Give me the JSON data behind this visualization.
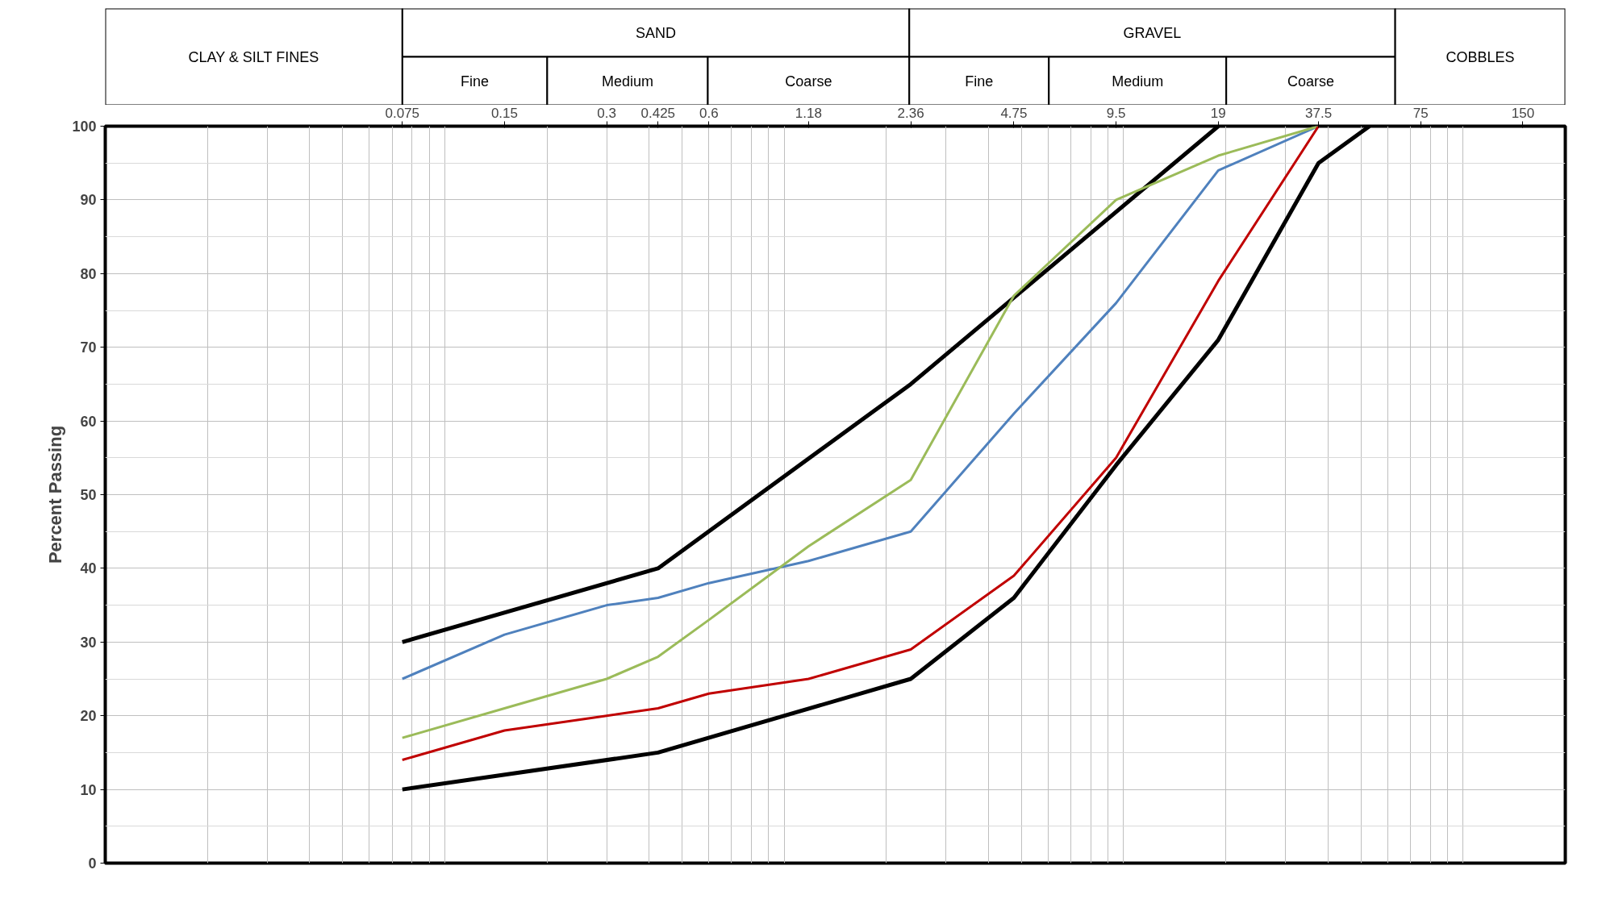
{
  "chart_data": [
    {
      "type": "other",
      "annotations": [
        "CLAY & SILT FINES",
        "SAND",
        "Fine",
        "Medium",
        "Coarse",
        "GRAVEL",
        "Fine",
        "Medium",
        "Coarse",
        "COBBLES"
      ]
    },
    {
      "type": "line",
      "ylabel": "Percent Passing",
      "log": "x",
      "grid": true,
      "xlim": [
        0.01,
        200
      ],
      "ylim": [
        0,
        100
      ],
      "xticks": [
        0.075,
        0.15,
        0.3,
        0.425,
        0.6,
        1.18,
        2.36,
        4.75,
        9.5,
        19,
        37.5,
        75,
        150
      ],
      "yticks": [
        0,
        10,
        20,
        30,
        40,
        50,
        60,
        70,
        80,
        90,
        100
      ],
      "series": [
        {
          "color": "#000000",
          "x": [
            0.075,
            0.425,
            2.36,
            19
          ],
          "values": [
            30,
            40,
            65,
            100
          ]
        },
        {
          "color": "#000000",
          "x": [
            0.075,
            0.425,
            2.36,
            4.75,
            9.5,
            19,
            37.5,
            53
          ],
          "values": [
            10,
            15,
            25,
            36,
            54,
            71,
            95,
            100
          ]
        },
        {
          "color": "#4f81bd",
          "x": [
            0.075,
            0.15,
            0.3,
            0.425,
            0.6,
            1.18,
            2.36,
            4.75,
            9.5,
            19,
            37.5
          ],
          "values": [
            25,
            31,
            35,
            36,
            38,
            41,
            45,
            61,
            76,
            94,
            100
          ]
        },
        {
          "color": "#9bbb59",
          "x": [
            0.075,
            0.15,
            0.3,
            0.425,
            0.6,
            1.18,
            2.36,
            4.75,
            9.5,
            19,
            37.5
          ],
          "values": [
            17,
            21,
            25,
            28,
            33,
            43,
            52,
            77,
            90,
            96,
            100
          ]
        },
        {
          "color": "#c00000",
          "x": [
            0.075,
            0.15,
            0.3,
            0.425,
            0.6,
            1.18,
            2.36,
            4.75,
            9.5,
            19,
            37.5
          ],
          "values": [
            14,
            18,
            20,
            21,
            23,
            25,
            29,
            39,
            55,
            79,
            100
          ]
        }
      ]
    }
  ]
}
